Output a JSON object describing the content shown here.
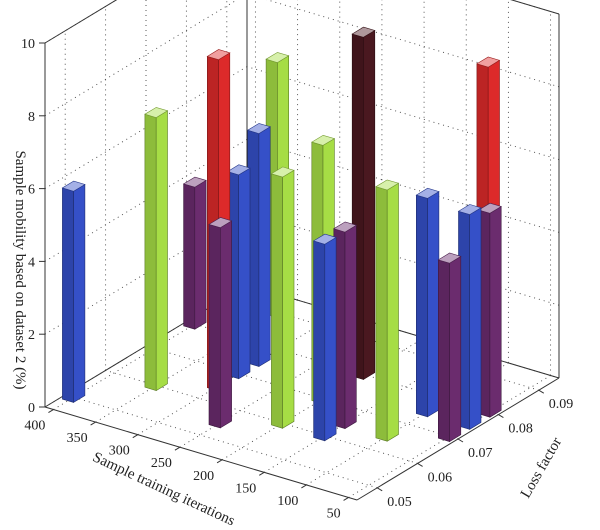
{
  "chart_data": {
    "type": "bar3d",
    "xlabel": "Sample training iterations",
    "ylabel": "Loss factor",
    "zlabel": "Sample mobility based on dataset 2 (%)",
    "x_ticks": [
      50,
      100,
      150,
      200,
      250,
      300,
      350,
      400
    ],
    "y_ticks": [
      0.05,
      0.06,
      0.07,
      0.08,
      0.09
    ],
    "z_ticks": [
      0,
      2,
      4,
      6,
      8,
      10
    ],
    "x_range": [
      40,
      410
    ],
    "y_range": [
      0.045,
      0.095
    ],
    "z_range": [
      0,
      10
    ],
    "grid": true,
    "colors": {
      "purple": "#6b2c6e",
      "blue": "#3550c8",
      "green": "#a6dd45",
      "red": "#dd2a2a",
      "dark": "#4a1820"
    },
    "bars": [
      {
        "x": 100,
        "y": 0.09,
        "value": 8.6,
        "color": "red"
      },
      {
        "x": 350,
        "y": 0.09,
        "value": 7.0,
        "color": "green"
      },
      {
        "x": 50,
        "y": 0.08,
        "value": 5.6,
        "color": "purple"
      },
      {
        "x": 200,
        "y": 0.08,
        "value": 9.4,
        "color": "dark"
      },
      {
        "x": 400,
        "y": 0.08,
        "value": 3.9,
        "color": "purple"
      },
      {
        "x": 50,
        "y": 0.075,
        "value": 5.9,
        "color": "blue"
      },
      {
        "x": 100,
        "y": 0.075,
        "value": 6.0,
        "color": "blue"
      },
      {
        "x": 300,
        "y": 0.075,
        "value": 6.4,
        "color": "blue"
      },
      {
        "x": 50,
        "y": 0.07,
        "value": 4.9,
        "color": "purple"
      },
      {
        "x": 200,
        "y": 0.07,
        "value": 7.1,
        "color": "green"
      },
      {
        "x": 300,
        "y": 0.07,
        "value": 5.6,
        "color": "blue"
      },
      {
        "x": 100,
        "y": 0.065,
        "value": 6.9,
        "color": "green"
      },
      {
        "x": 150,
        "y": 0.065,
        "value": 5.4,
        "color": "purple"
      },
      {
        "x": 150,
        "y": 0.06,
        "value": 5.4,
        "color": "blue"
      },
      {
        "x": 200,
        "y": 0.06,
        "value": 6.9,
        "color": "green"
      },
      {
        "x": 300,
        "y": 0.065,
        "value": 9.1,
        "color": "red"
      },
      {
        "x": 350,
        "y": 0.06,
        "value": 7.5,
        "color": "green"
      },
      {
        "x": 250,
        "y": 0.055,
        "value": 5.5,
        "color": "purple"
      },
      {
        "x": 400,
        "y": 0.05,
        "value": 5.8,
        "color": "blue"
      }
    ]
  }
}
